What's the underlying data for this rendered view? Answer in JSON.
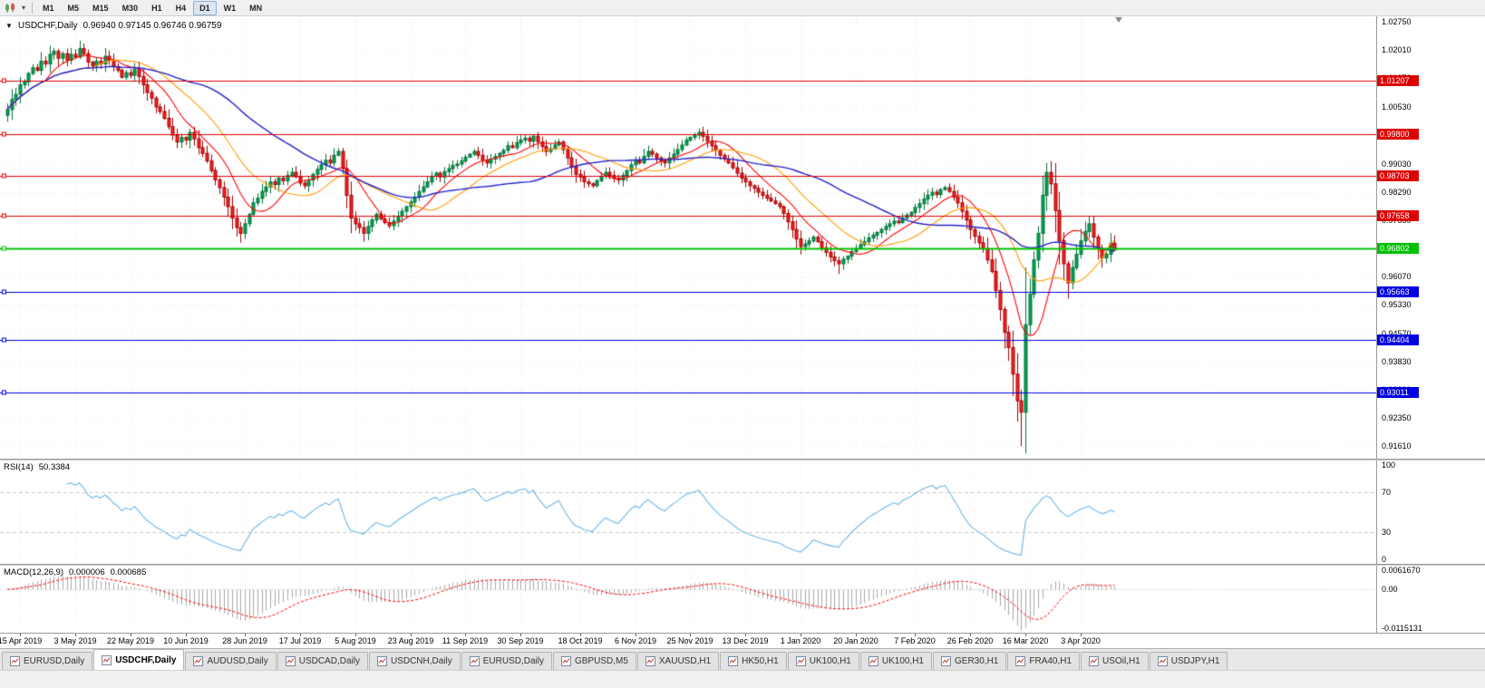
{
  "toolbar": {
    "timeframes": [
      "M1",
      "M5",
      "M15",
      "M30",
      "H1",
      "H4",
      "D1",
      "W1",
      "MN"
    ],
    "active": "D1"
  },
  "chart": {
    "title": "USDCHF,Daily",
    "ohlc": "0.96940 0.97145 0.96746 0.96759"
  },
  "price_scale": {
    "ticks": [
      "1.02750",
      "1.02010",
      "1.01270",
      "1.00530",
      "0.99790",
      "0.99030",
      "0.98290",
      "0.97550",
      "0.96810",
      "0.96070",
      "0.95330",
      "0.94570",
      "0.93830",
      "0.93090",
      "0.92350",
      "0.91610"
    ]
  },
  "rsi_panel": {
    "title": "RSI(14)",
    "value": "50.3384",
    "scale": [
      {
        "text": "100",
        "value": 100
      },
      {
        "text": "70",
        "value": 70
      },
      {
        "text": "30",
        "value": 30
      },
      {
        "text": "0",
        "value": 0
      }
    ],
    "dashed_levels": [
      70,
      30
    ],
    "line_color": "#6cb6e8"
  },
  "macd_panel": {
    "title": "MACD(12,26,9)",
    "value_macd": "0.000006",
    "value_signal": "0.000685",
    "scale": [
      {
        "text": "0.0061670",
        "value": 0.006167
      },
      {
        "text": "0.00",
        "value": 0
      },
      {
        "text": "-0.0115131",
        "value": -0.0115131
      }
    ],
    "hist_color": "#a8a8a8",
    "signal_color": "#ff0000"
  },
  "tabs": {
    "items": [
      "EURUSD,Daily",
      "USDCHF,Daily",
      "AUDUSD,Daily",
      "USDCAD,Daily",
      "USDCNH,Daily",
      "EURUSD,Daily",
      "GBPUSD,M5",
      "XAUUSD,H1",
      "HK50,H1",
      "UK100,H1",
      "UK100,H1",
      "GER30,H1",
      "FRA40,H1",
      "USOil,H1",
      "USDJPY,H1"
    ],
    "active_index": 1
  },
  "chart_data": {
    "type": "candlestick",
    "symbol": "USDCHF",
    "period": "Daily",
    "current_bar": {
      "open": 0.9694,
      "high": 0.97145,
      "low": 0.96746,
      "close": 0.96759
    },
    "y_range": [
      0.9128,
      1.029
    ],
    "x_labels": [
      "15 Apr 2019",
      "3 May 2019",
      "22 May 2019",
      "10 Jun 2019",
      "28 Jun 2019",
      "17 Jul 2019",
      "5 Aug 2019",
      "23 Aug 2019",
      "11 Sep 2019",
      "30 Sep 2019",
      "18 Oct 2019",
      "6 Nov 2019",
      "25 Nov 2019",
      "13 Dec 2019",
      "1 Jan 2020",
      "20 Jan 2020",
      "7 Feb 2020",
      "26 Feb 2020",
      "16 Mar 2020",
      "3 Apr 2020"
    ],
    "first_open": 1.003,
    "closes": [
      1.0045,
      1.0072,
      1.0085,
      1.011,
      1.0118,
      1.014,
      1.0155,
      1.0148,
      1.0172,
      1.0165,
      1.019,
      1.0198,
      1.018,
      1.0192,
      1.0175,
      1.019,
      1.0183,
      1.0205,
      1.0192,
      1.017,
      1.016,
      1.0172,
      1.0165,
      1.0185,
      1.0175,
      1.0158,
      1.0148,
      1.013,
      1.0142,
      1.0135,
      1.015,
      1.0132,
      1.011,
      1.009,
      1.0075,
      1.0052,
      1.004,
      1.0022,
      1.0,
      0.9978,
      0.996,
      0.9972,
      0.9965,
      0.9985,
      0.9968,
      0.9945,
      0.993,
      0.991,
      0.9885,
      0.986,
      0.984,
      0.9815,
      0.979,
      0.976,
      0.9735,
      0.972,
      0.9745,
      0.977,
      0.98,
      0.9812,
      0.983,
      0.9842,
      0.9855,
      0.9848,
      0.9865,
      0.9858,
      0.9872,
      0.988,
      0.9868,
      0.9852,
      0.9845,
      0.986,
      0.9875,
      0.9888,
      0.99,
      0.9912,
      0.9905,
      0.9925,
      0.9935,
      0.989,
      0.982,
      0.976,
      0.9745,
      0.9735,
      0.972,
      0.9738,
      0.9755,
      0.977,
      0.9758,
      0.9748,
      0.974,
      0.9752,
      0.9765,
      0.9778,
      0.979,
      0.9802,
      0.9815,
      0.983,
      0.9842,
      0.9855,
      0.987,
      0.9878,
      0.9868,
      0.9882,
      0.989,
      0.9898,
      0.9902,
      0.991,
      0.992,
      0.9928,
      0.9935,
      0.9925,
      0.9912,
      0.9905,
      0.9915,
      0.9922,
      0.993,
      0.9938,
      0.995,
      0.9945,
      0.9958,
      0.9965,
      0.997,
      0.9962,
      0.9975,
      0.996,
      0.9948,
      0.9935,
      0.9942,
      0.9952,
      0.996,
      0.994,
      0.9918,
      0.9895,
      0.9875,
      0.9868,
      0.9855,
      0.985,
      0.9845,
      0.9858,
      0.987,
      0.988,
      0.9872,
      0.9865,
      0.986,
      0.9872,
      0.9885,
      0.99,
      0.991,
      0.9905,
      0.9922,
      0.9935,
      0.9928,
      0.9918,
      0.991,
      0.9905,
      0.9918,
      0.9928,
      0.994,
      0.9952,
      0.9965,
      0.9972,
      0.9978,
      0.9985,
      0.9975,
      0.9962,
      0.995,
      0.9938,
      0.9925,
      0.9915,
      0.9905,
      0.9892,
      0.9878,
      0.9865,
      0.9855,
      0.9845,
      0.9838,
      0.9828,
      0.982,
      0.9812,
      0.9805,
      0.9798,
      0.979,
      0.9772,
      0.975,
      0.973,
      0.9705,
      0.9685,
      0.9692,
      0.97,
      0.971,
      0.9698,
      0.9682,
      0.967,
      0.9658,
      0.9648,
      0.964,
      0.9652,
      0.966,
      0.9672,
      0.968,
      0.969,
      0.9698,
      0.9708,
      0.9715,
      0.9722,
      0.973,
      0.9738,
      0.9745,
      0.9752,
      0.9748,
      0.976,
      0.9768,
      0.9775,
      0.9788,
      0.9798,
      0.981,
      0.982,
      0.9828,
      0.9822,
      0.9835,
      0.984,
      0.983,
      0.9815,
      0.98,
      0.9778,
      0.9755,
      0.973,
      0.9712,
      0.9695,
      0.968,
      0.965,
      0.962,
      0.957,
      0.952,
      0.946,
      0.942,
      0.935,
      0.928,
      0.925,
      0.948,
      0.956,
      0.965,
      0.972,
      0.982,
      0.988,
      0.985,
      0.978,
      0.97,
      0.964,
      0.959,
      0.963,
      0.9665,
      0.97,
      0.9725,
      0.9745,
      0.971,
      0.968,
      0.9655,
      0.9665,
      0.9694,
      0.9676
    ],
    "overrides": {
      "17": {
        "high": 1.0226
      },
      "55": {
        "low": 0.9695
      },
      "84": {
        "low": 0.9698
      },
      "196": {
        "low": 0.9613
      },
      "239": {
        "low": 0.9161
      },
      "245": {
        "high": 0.9905
      },
      "250": {
        "low": 0.9548
      },
      "261": {
        "open": 0.9694,
        "high": 0.97145,
        "low": 0.96746,
        "close": 0.96759
      }
    },
    "up_color": "#00a651",
    "up_border": "#00713a",
    "down_color": "#ff1f1f",
    "down_border": "#a00000",
    "moving_averages": [
      {
        "period": 10,
        "color": "#ff0000"
      },
      {
        "period": 21,
        "color": "#ff9b00"
      },
      {
        "period": 45,
        "color": "#2222cc"
      }
    ],
    "levels": [
      {
        "label": "1.01207",
        "value": 1.01207,
        "color": "#dd0000",
        "width": 1
      },
      {
        "label": "0.99800",
        "value": 0.998,
        "color": "#dd0000",
        "width": 1
      },
      {
        "label": "0.98703",
        "value": 0.98703,
        "color": "#dd0000",
        "width": 1
      },
      {
        "label": "0.97658",
        "value": 0.97658,
        "color": "#dd0000",
        "width": 1
      },
      {
        "label": "0.96802",
        "value": 0.96802,
        "color": "#00c000",
        "width": 2
      },
      {
        "label": "0.95663",
        "value": 0.95663,
        "color": "#0000e0",
        "width": 1
      },
      {
        "label": "0.94404",
        "value": 0.94404,
        "color": "#0000e0",
        "width": 1
      },
      {
        "label": "0.93011",
        "value": 0.93011,
        "color": "#0000e0",
        "width": 1
      }
    ],
    "rsi": {
      "period": 14
    },
    "macd": {
      "fast": 12,
      "slow": 26,
      "signal": 9,
      "display_range": [
        -0.0118,
        0.0063
      ]
    }
  }
}
